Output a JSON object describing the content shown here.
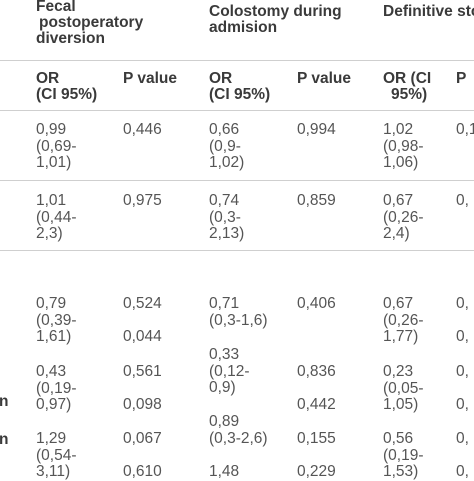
{
  "headers": {
    "group1": [
      "Fecal",
      "postoperatory",
      "diversion"
    ],
    "group2": [
      "Colostomy during",
      "admision"
    ],
    "group3": [
      "Definitive sto"
    ]
  },
  "subheaders": {
    "or_1": "OR",
    "ci_1": "(CI 95%)",
    "p_1": "P value",
    "or_2": "OR",
    "ci_2": "(CI 95%)",
    "p_2": "P value",
    "or_3": "OR (CI",
    "ci_3": "95%)",
    "p_3": "P"
  },
  "rows": [
    {
      "c1": [
        "0,99",
        "(0,69-",
        "1,01)"
      ],
      "p1": "0,446",
      "c2": [
        "0,66",
        "(0,9-",
        "1,02)"
      ],
      "p2": "0,994",
      "c3": [
        "1,02",
        "(0,98-",
        "1,06)"
      ],
      "p3": "0,1"
    },
    {
      "c1": [
        "1,01",
        "(0,44-",
        "2,3)"
      ],
      "p1": "0,975",
      "c2": [
        "0,74",
        "(0,3-",
        "2,13)"
      ],
      "p2": "0,859",
      "c3": [
        "0,67",
        "(0,26-",
        "2,4)"
      ],
      "p3": "0,"
    }
  ],
  "lower_rows": [
    {
      "c1": [
        "0,79",
        "(0,39-",
        "1,61)"
      ],
      "p1": "0,524",
      "c2": [
        "0,71",
        "(0,3-1,6)"
      ],
      "p2": "0,406",
      "c3": [
        "0,67",
        "(0,26-",
        "1,77)"
      ],
      "p3": "0,"
    },
    {
      "c1": [],
      "p1": "0,044",
      "c2": [
        "0,33",
        "(0,12-",
        "0,9)"
      ],
      "p2": "",
      "c3": [],
      "p3": "0,"
    },
    {
      "c1": [
        "0,43",
        "(0,19-",
        "0,97)"
      ],
      "p1": "0,561",
      "c2": [],
      "p2": "0,836",
      "c3": [
        "0,23",
        "(0,05-",
        "1,05)"
      ],
      "p3": "0,"
    },
    {
      "c1": [],
      "p1": "0,098",
      "c2": [
        "0,89",
        "(0,3-2,6)"
      ],
      "p2": "0,442",
      "c3": [],
      "p3": "0,"
    },
    {
      "c1": [
        "1,29",
        "(0,54-",
        "3,11)"
      ],
      "p1": "0,067",
      "c2": [],
      "p2": "0,155",
      "c3": [
        "0,56",
        "(0,19-",
        "1,53)"
      ],
      "p3": "0,"
    },
    {
      "c1": [],
      "p1": "0,610",
      "c2": [
        "1,48"
      ],
      "p2": "0,229",
      "c3": [],
      "p3": "0,"
    }
  ],
  "row_label_fragments": [
    "n",
    "n"
  ]
}
